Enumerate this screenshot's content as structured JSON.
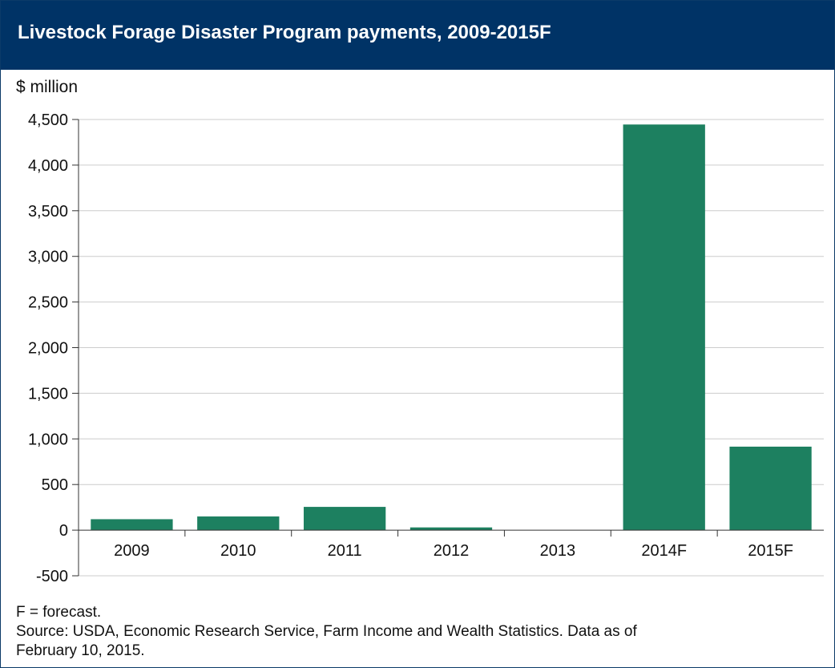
{
  "chart_data": {
    "type": "bar",
    "title": "Livestock Forage Disaster Program payments, 2009-2015F",
    "ylabel": "$ million",
    "xlabel": "",
    "categories": [
      "2009",
      "2010",
      "2011",
      "2012",
      "2013",
      "2014F",
      "2015F"
    ],
    "values": [
      120,
      150,
      255,
      30,
      0,
      4445,
      915
    ],
    "ylim": [
      -500,
      4500
    ],
    "yticks": [
      -500,
      0,
      500,
      1000,
      1500,
      2000,
      2500,
      3000,
      3500,
      4000,
      4500
    ],
    "ytick_labels": [
      "-500",
      "0",
      "500",
      "1,000",
      "1,500",
      "2,000",
      "2,500",
      "3,000",
      "3,500",
      "4,000",
      "4,500"
    ],
    "grid": true,
    "bar_color": "#1d8060"
  },
  "notes": {
    "forecast": "F = forecast.",
    "source_line1": "Source: USDA, Economic Research Service, Farm Income and Wealth Statistics. Data as of",
    "source_line2": "February 10, 2015."
  },
  "colors": {
    "title_background": "#003366",
    "title_text": "#ffffff",
    "gridline": "#cccccc",
    "axis": "#333333"
  }
}
